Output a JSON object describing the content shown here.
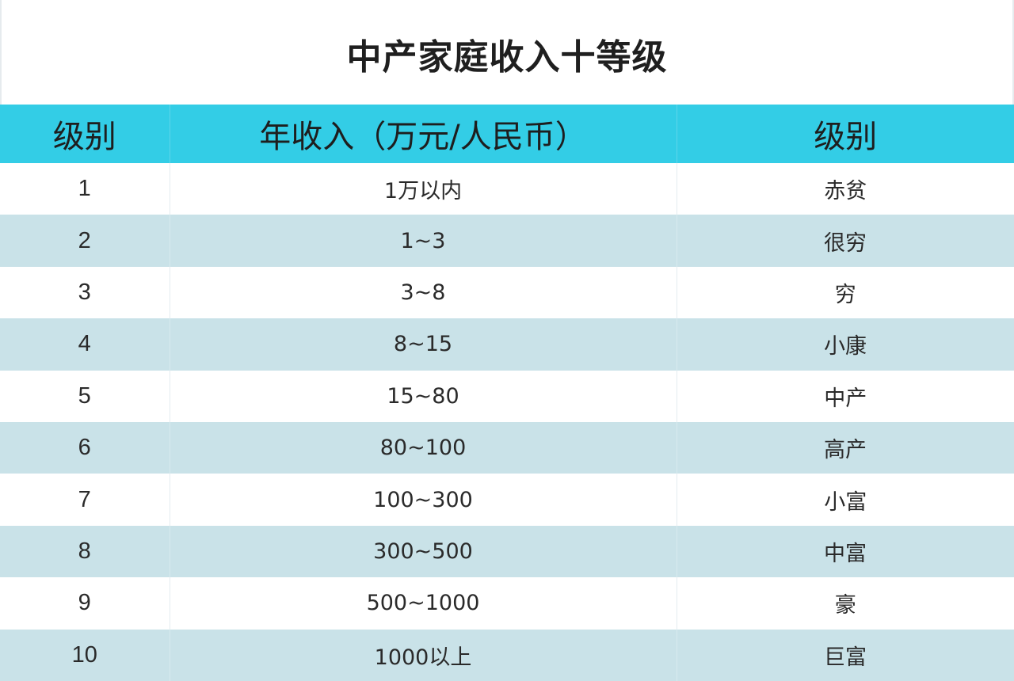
{
  "title": "中产家庭收入十等级",
  "table": {
    "headers": [
      "级别",
      "年收入（万元/人民币）",
      "级别"
    ],
    "rows": [
      [
        "1",
        "1万以内",
        "赤贫"
      ],
      [
        "2",
        "1~3",
        "很穷"
      ],
      [
        "3",
        "3~8",
        "穷"
      ],
      [
        "4",
        "8~15",
        "小康"
      ],
      [
        "5",
        "15~80",
        "中产"
      ],
      [
        "6",
        "80~100",
        "高产"
      ],
      [
        "7",
        "100~300",
        "小富"
      ],
      [
        "8",
        "300~500",
        "中富"
      ],
      [
        "9",
        "500~1000",
        "豪"
      ],
      [
        "10",
        "1000以上",
        "巨富"
      ]
    ]
  },
  "colors": {
    "header_bg": "#33cde6",
    "row_alt_bg": "#c9e2e8",
    "row_bg": "#ffffff"
  }
}
